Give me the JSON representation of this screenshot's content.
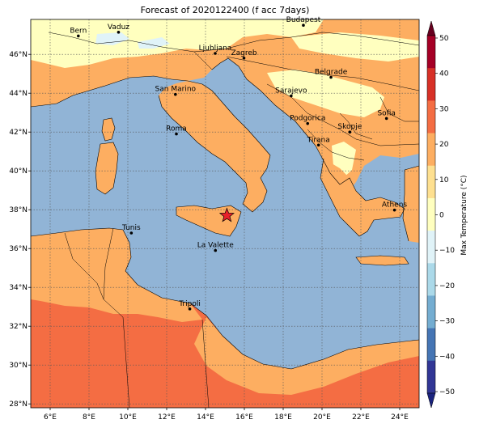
{
  "title": "Forecast of 2020122400 (f acc 7days)",
  "map": {
    "lon_range": [
      5,
      25
    ],
    "lat_range": [
      27.8,
      47.8
    ],
    "lon_ticks": [
      "6°E",
      "8°E",
      "10°E",
      "12°E",
      "14°E",
      "16°E",
      "18°E",
      "20°E",
      "22°E",
      "24°E"
    ],
    "lat_ticks": [
      "28°N",
      "30°N",
      "32°N",
      "34°N",
      "36°N",
      "38°N",
      "40°N",
      "42°N",
      "44°N",
      "46°N"
    ],
    "grid": true,
    "colors": {
      "sea": "#91b4d6",
      "very_warm": "#f46d43",
      "warm": "#fdae61",
      "mild": "#fee090",
      "cool": "#ffffbf",
      "cold": "#e0f3f8"
    },
    "marker": {
      "name": "star",
      "lon": 15.1,
      "lat": 37.7,
      "color": "#e8202a"
    }
  },
  "cities": [
    {
      "name": "Bern",
      "lon": 7.45,
      "lat": 46.95
    },
    {
      "name": "Vaduz",
      "lon": 9.52,
      "lat": 47.14
    },
    {
      "name": "Budapest",
      "lon": 19.04,
      "lat": 47.5
    },
    {
      "name": "Ljubljana",
      "lon": 14.5,
      "lat": 46.05
    },
    {
      "name": "Zagreb",
      "lon": 15.98,
      "lat": 45.81
    },
    {
      "name": "San Marino",
      "lon": 12.45,
      "lat": 43.94
    },
    {
      "name": "Sarajevo",
      "lon": 18.41,
      "lat": 43.86
    },
    {
      "name": "Belgrade",
      "lon": 20.46,
      "lat": 44.82
    },
    {
      "name": "Sofia",
      "lon": 23.32,
      "lat": 42.7
    },
    {
      "name": "Roma",
      "lon": 12.5,
      "lat": 41.9
    },
    {
      "name": "Podgorica",
      "lon": 19.26,
      "lat": 42.44
    },
    {
      "name": "Skopje",
      "lon": 21.43,
      "lat": 42.0
    },
    {
      "name": "Tirana",
      "lon": 19.82,
      "lat": 41.33
    },
    {
      "name": "Athens",
      "lon": 23.73,
      "lat": 37.98
    },
    {
      "name": "Tunis",
      "lon": 10.18,
      "lat": 36.8
    },
    {
      "name": "La Valette",
      "lon": 14.51,
      "lat": 35.9
    },
    {
      "name": "Tripoli",
      "lon": 13.19,
      "lat": 32.89
    }
  ],
  "colorbar": {
    "label": "Max Temperature (°C)",
    "ticks": [
      "50",
      "40",
      "30",
      "20",
      "10",
      "0",
      "−10",
      "−20",
      "−30",
      "−40",
      "−50"
    ],
    "colors": [
      "#67001f",
      "#a50026",
      "#d73027",
      "#f46d43",
      "#fdae61",
      "#fee090",
      "#ffffbf",
      "#e0f3f8",
      "#abd9e9",
      "#74add1",
      "#4575b4",
      "#313695",
      "#1a237e"
    ]
  }
}
